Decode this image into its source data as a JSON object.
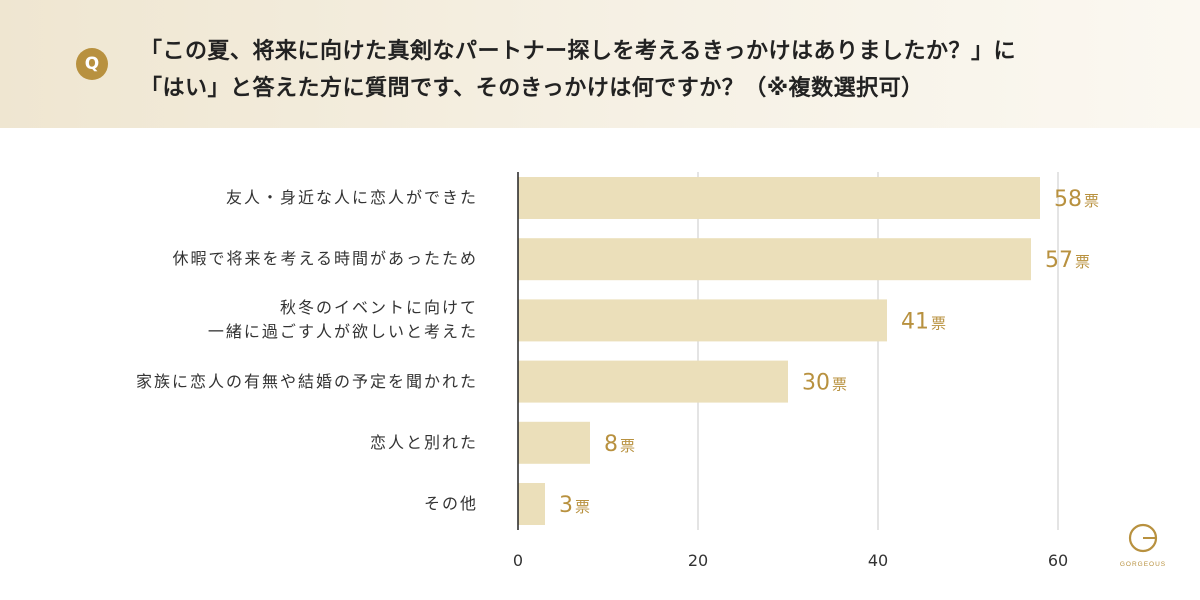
{
  "header": {
    "badge": "Q",
    "question_line1": "「この夏、将来に向けた真剣なパートナー探しを考えるきっかけはありましたか？」に",
    "question_line2": "「はい」と答えた方に質問です、そのきっかけは何ですか？（※複数選択可）"
  },
  "logo": {
    "text": "GORGEOUS"
  },
  "colors": {
    "bar": "#ebdfba",
    "value_text": "#b8913f",
    "grid": "#c8c8c8",
    "axis": "#222222",
    "header_bg": "#f3ecdc"
  },
  "chart_data": {
    "type": "bar",
    "orientation": "horizontal",
    "categories": [
      [
        "友人・身近な人に恋人ができた"
      ],
      [
        "休暇で将来を考える時間があったため"
      ],
      [
        "秋冬のイベントに向けて",
        "一緒に過ごす人が欲しいと考えた"
      ],
      [
        "家族に恋人の有無や結婚の予定を聞かれた"
      ],
      [
        "恋人と別れた"
      ],
      [
        "その他"
      ]
    ],
    "values": [
      58,
      57,
      41,
      30,
      8,
      3
    ],
    "value_suffix": "票",
    "xlim": [
      0,
      60
    ],
    "xticks": [
      0,
      20,
      40,
      60
    ],
    "grid": true
  }
}
